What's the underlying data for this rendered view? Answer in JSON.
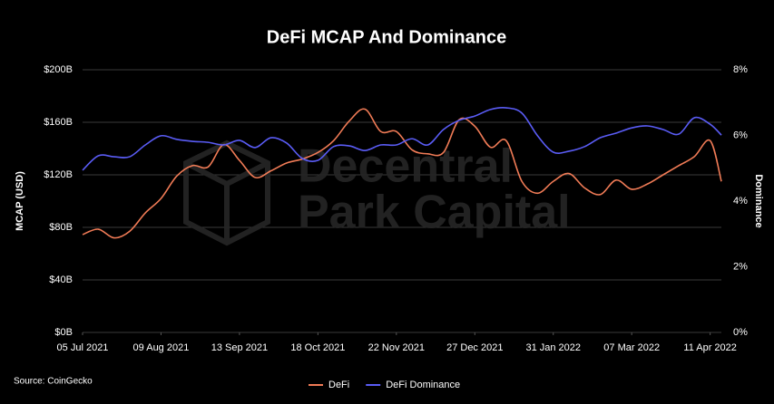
{
  "chart_data": {
    "type": "line",
    "title": "DeFi MCAP And Dominance",
    "y_label": "MCAP (USD)",
    "y2_label": "Dominance",
    "source": "Source: CoinGecko",
    "watermark": [
      "Decentral",
      "Park Capital"
    ],
    "x": [
      "2021-07-05",
      "2021-07-12",
      "2021-07-19",
      "2021-07-26",
      "2021-08-02",
      "2021-08-09",
      "2021-08-16",
      "2021-08-23",
      "2021-08-30",
      "2021-09-06",
      "2021-09-13",
      "2021-09-20",
      "2021-09-27",
      "2021-10-04",
      "2021-10-11",
      "2021-10-18",
      "2021-10-25",
      "2021-11-01",
      "2021-11-08",
      "2021-11-15",
      "2021-11-22",
      "2021-11-29",
      "2021-12-06",
      "2021-12-13",
      "2021-12-20",
      "2021-12-27",
      "2022-01-03",
      "2022-01-10",
      "2022-01-17",
      "2022-01-24",
      "2022-01-31",
      "2022-02-07",
      "2022-02-14",
      "2022-02-21",
      "2022-02-28",
      "2022-03-07",
      "2022-03-14",
      "2022-03-21",
      "2022-03-28",
      "2022-04-04",
      "2022-04-11",
      "2022-04-16"
    ],
    "xlim": [
      "2021-07-05",
      "2022-04-16"
    ],
    "xticks": [
      {
        "value": "2021-07-05",
        "label": "05 Jul 2021"
      },
      {
        "value": "2021-08-09",
        "label": "09 Aug 2021"
      },
      {
        "value": "2021-09-13",
        "label": "13 Sep 2021"
      },
      {
        "value": "2021-10-18",
        "label": "18 Oct 2021"
      },
      {
        "value": "2021-11-22",
        "label": "22 Nov 2021"
      },
      {
        "value": "2021-12-27",
        "label": "27 Dec 2021"
      },
      {
        "value": "2022-01-31",
        "label": "31 Jan 2022"
      },
      {
        "value": "2022-03-07",
        "label": "07 Mar 2022"
      },
      {
        "value": "2022-04-11",
        "label": "11 Apr 2022"
      }
    ],
    "ylim": [
      0,
      200
    ],
    "yticks": [
      {
        "value": 0,
        "label": "$0B"
      },
      {
        "value": 40,
        "label": "$40B"
      },
      {
        "value": 80,
        "label": "$80B"
      },
      {
        "value": 120,
        "label": "$120B"
      },
      {
        "value": 160,
        "label": "$160B"
      },
      {
        "value": 200,
        "label": "$200B"
      }
    ],
    "y2lim": [
      0,
      8
    ],
    "y2ticks": [
      {
        "value": 0,
        "label": "0%"
      },
      {
        "value": 2,
        "label": "2%"
      },
      {
        "value": 4,
        "label": "4%"
      },
      {
        "value": 6,
        "label": "6%"
      },
      {
        "value": 8,
        "label": "8%"
      }
    ],
    "grid": true,
    "legend": "bottom",
    "series": [
      {
        "name": "DeFi",
        "color": "#f07b56",
        "axis": "y",
        "values": [
          74.5,
          78.6,
          72,
          77,
          91,
          102,
          119,
          127,
          126,
          143,
          131,
          118,
          123,
          129,
          132,
          137,
          146,
          161,
          170,
          153,
          153,
          139,
          136,
          137,
          162,
          157,
          141,
          146,
          115,
          106,
          115,
          121,
          110,
          105,
          116,
          109,
          113,
          120,
          127,
          134,
          146,
          115
        ]
      },
      {
        "name": "DeFi Dominance",
        "color": "#5a5cf5",
        "axis": "y2",
        "values": [
          4.94,
          5.38,
          5.35,
          5.35,
          5.71,
          5.99,
          5.88,
          5.82,
          5.79,
          5.71,
          5.85,
          5.63,
          5.93,
          5.77,
          5.3,
          5.24,
          5.66,
          5.68,
          5.54,
          5.71,
          5.71,
          5.9,
          5.71,
          6.18,
          6.46,
          6.59,
          6.79,
          6.84,
          6.68,
          5.99,
          5.49,
          5.52,
          5.66,
          5.93,
          6.07,
          6.23,
          6.29,
          6.18,
          6.04,
          6.54,
          6.34,
          6.01
        ]
      }
    ]
  }
}
